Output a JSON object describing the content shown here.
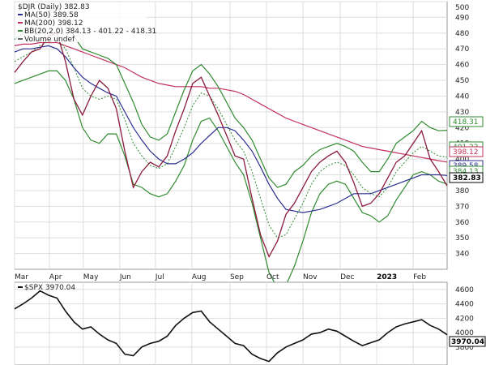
{
  "chart_data": [
    {
      "type": "line",
      "title": "$DJR (Daily) 382.83",
      "legend_position": "top-left",
      "grid": true,
      "ylim": [
        330,
        500
      ],
      "y_ticks": [
        340,
        350,
        360,
        370,
        380,
        390,
        400,
        410,
        420,
        430,
        440,
        450,
        460,
        470,
        480,
        490,
        500
      ],
      "x_ticks": [
        "Mar",
        "Apr",
        "May",
        "Jun",
        "Jul",
        "Aug",
        "Sep",
        "Oct",
        "Nov",
        "Dec",
        "2023",
        "Feb"
      ],
      "legend": [
        {
          "text": "MA(50) 389.58",
          "color": "#2b2f8f"
        },
        {
          "text": "MA(200) 398.12",
          "color": "#c2305a"
        },
        {
          "text": "BB(20,2.0) 384.13 - 401.22 - 418.31",
          "color": "#2f8a2f"
        },
        {
          "text": "Volume undef",
          "color": "#666666"
        }
      ],
      "price_tags": [
        {
          "text": "418.31",
          "value": 418.31,
          "color": "#2f8a2f"
        },
        {
          "text": "401.22",
          "value": 401.22,
          "color": "#2f8a2f"
        },
        {
          "text": "398.12",
          "value": 398.12,
          "color": "#c2305a"
        },
        {
          "text": "389.58",
          "value": 389.58,
          "color": "#2b2f8f"
        },
        {
          "text": "384.13",
          "value": 384.13,
          "color": "#2f8a2f"
        },
        {
          "text": "382.83",
          "value": 382.83,
          "color": "#000000",
          "current": true
        }
      ],
      "x_index": [
        0,
        5,
        10,
        15,
        20,
        25,
        30,
        35,
        40,
        45,
        50,
        55,
        60,
        65,
        70,
        75,
        80,
        85,
        90,
        95,
        100,
        105,
        110,
        115,
        120,
        125,
        130,
        135,
        140,
        145,
        150,
        155,
        160,
        165,
        170,
        175,
        180,
        185,
        190,
        195,
        200,
        205,
        210,
        215,
        220,
        225,
        230,
        235,
        240,
        245,
        250,
        255
      ],
      "series": [
        {
          "name": "$DJR",
          "values": [
            455,
            462,
            468,
            470,
            478,
            480,
            462,
            438,
            428,
            440,
            450,
            445,
            432,
            405,
            382,
            392,
            398,
            395,
            402,
            418,
            432,
            448,
            452,
            440,
            428,
            415,
            402,
            400,
            375,
            352,
            338,
            348,
            365,
            372,
            382,
            392,
            398,
            402,
            405,
            398,
            385,
            370,
            372,
            378,
            388,
            398,
            402,
            410,
            418,
            400,
            392,
            383
          ]
        },
        {
          "name": "MA(50)",
          "values": [
            468,
            470,
            470,
            471,
            472,
            470,
            465,
            458,
            452,
            448,
            445,
            442,
            440,
            430,
            420,
            412,
            405,
            400,
            397,
            397,
            400,
            404,
            410,
            415,
            420,
            420,
            418,
            412,
            405,
            395,
            384,
            375,
            368,
            367,
            366,
            367,
            368,
            370,
            372,
            375,
            378,
            378,
            378,
            380,
            382,
            384,
            386,
            388,
            390,
            390,
            390,
            389.58
          ]
        },
        {
          "name": "MA(200)",
          "values": [
            472,
            473,
            473,
            474,
            474,
            474,
            472,
            470,
            468,
            466,
            464,
            462,
            460,
            458,
            455,
            452,
            450,
            448,
            447,
            446,
            446,
            446,
            446,
            445,
            445,
            444,
            443,
            441,
            438,
            435,
            432,
            429,
            426,
            424,
            422,
            420,
            418,
            416,
            414,
            412,
            410,
            408,
            407,
            406,
            405,
            404,
            403,
            402,
            401,
            400,
            399,
            398.12
          ]
        },
        {
          "name": "BB mid",
          "values": [
            462,
            465,
            468,
            472,
            475,
            476,
            470,
            458,
            445,
            440,
            438,
            440,
            438,
            425,
            410,
            402,
            396,
            394,
            397,
            408,
            420,
            434,
            442,
            440,
            432,
            422,
            412,
            405,
            392,
            375,
            358,
            350,
            352,
            362,
            372,
            384,
            392,
            396,
            398,
            396,
            390,
            382,
            378,
            376,
            382,
            392,
            398,
            404,
            408,
            405,
            402,
            401.22
          ]
        },
        {
          "name": "BB upper",
          "values": [
            476,
            480,
            484,
            490,
            494,
            496,
            490,
            478,
            470,
            468,
            466,
            464,
            460,
            448,
            436,
            422,
            414,
            412,
            416,
            430,
            444,
            456,
            460,
            454,
            446,
            436,
            426,
            420,
            412,
            400,
            388,
            382,
            384,
            392,
            396,
            402,
            406,
            408,
            410,
            408,
            405,
            398,
            392,
            392,
            400,
            410,
            414,
            418,
            424,
            420,
            418,
            418.31
          ]
        },
        {
          "name": "BB lower",
          "values": [
            448,
            450,
            452,
            454,
            456,
            456,
            450,
            438,
            420,
            412,
            410,
            416,
            416,
            402,
            384,
            382,
            378,
            376,
            378,
            386,
            396,
            412,
            424,
            426,
            418,
            408,
            398,
            390,
            372,
            350,
            328,
            318,
            320,
            332,
            348,
            366,
            378,
            384,
            386,
            384,
            375,
            366,
            364,
            360,
            364,
            374,
            382,
            390,
            392,
            390,
            386,
            384.13
          ]
        }
      ]
    },
    {
      "type": "line",
      "title": "$SPX 3970.04",
      "legend_position": "top-left",
      "grid": true,
      "ylim": [
        3550,
        4700
      ],
      "y_ticks": [
        3800,
        4000,
        4200,
        4400,
        4600
      ],
      "price_tags": [
        {
          "text": "3970.04",
          "value": 3970.04,
          "color": "#000000",
          "current": true
        }
      ],
      "x_index": [
        0,
        5,
        10,
        15,
        20,
        25,
        30,
        35,
        40,
        45,
        50,
        55,
        60,
        65,
        70,
        75,
        80,
        85,
        90,
        95,
        100,
        105,
        110,
        115,
        120,
        125,
        130,
        135,
        140,
        145,
        150,
        155,
        160,
        165,
        170,
        175,
        180,
        185,
        190,
        195,
        200,
        205,
        210,
        215,
        220,
        225,
        230,
        235,
        240,
        245,
        250,
        255
      ],
      "series": [
        {
          "name": "$SPX",
          "values": [
            4330,
            4400,
            4480,
            4580,
            4520,
            4480,
            4300,
            4150,
            4050,
            4080,
            3980,
            3900,
            3850,
            3700,
            3680,
            3800,
            3850,
            3880,
            3950,
            4100,
            4200,
            4280,
            4300,
            4150,
            4050,
            3950,
            3850,
            3820,
            3700,
            3640,
            3600,
            3720,
            3800,
            3850,
            3900,
            3980,
            4000,
            4050,
            4020,
            3950,
            3880,
            3820,
            3860,
            3900,
            4000,
            4080,
            4120,
            4150,
            4180,
            4100,
            4050,
            3970.04
          ]
        }
      ]
    }
  ]
}
